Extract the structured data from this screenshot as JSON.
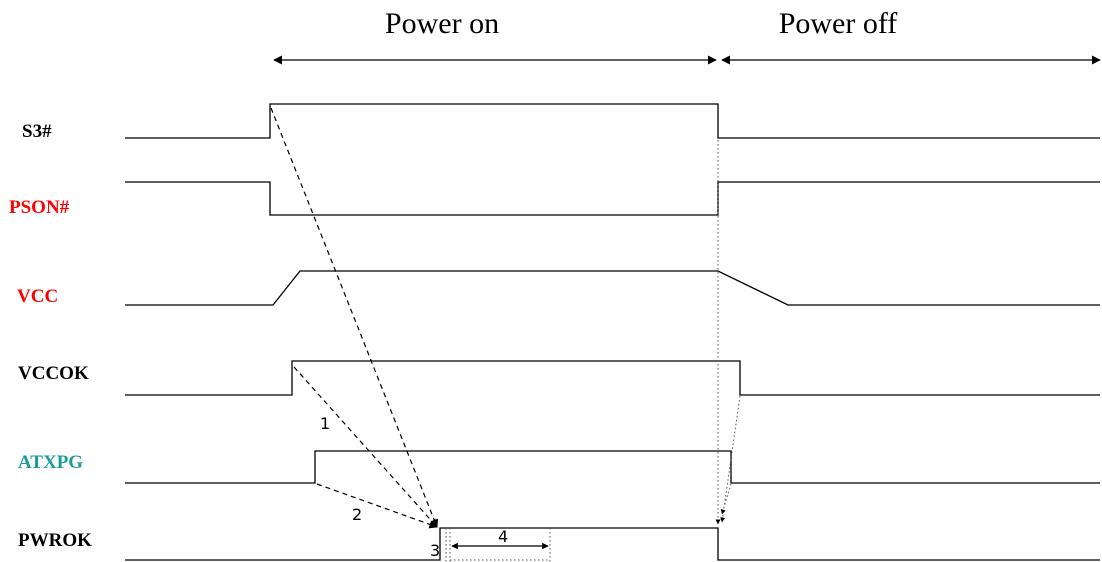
{
  "phases": {
    "power_on": "Power on",
    "power_off": "Power off"
  },
  "signals": [
    {
      "id": "s3",
      "label": "S3#",
      "color": "#000000"
    },
    {
      "id": "pson",
      "label": "PSON#",
      "color": "#ff0000"
    },
    {
      "id": "vcc",
      "label": "VCC",
      "color": "#ff0000"
    },
    {
      "id": "vccok",
      "label": "VCCOK",
      "color": "#000000"
    },
    {
      "id": "atxpg",
      "label": "ATXPG",
      "color": "#1a9a99"
    },
    {
      "id": "pwrok",
      "label": "PWROK",
      "color": "#000000"
    }
  ],
  "markers": [
    "1",
    "2",
    "3",
    "4"
  ]
}
